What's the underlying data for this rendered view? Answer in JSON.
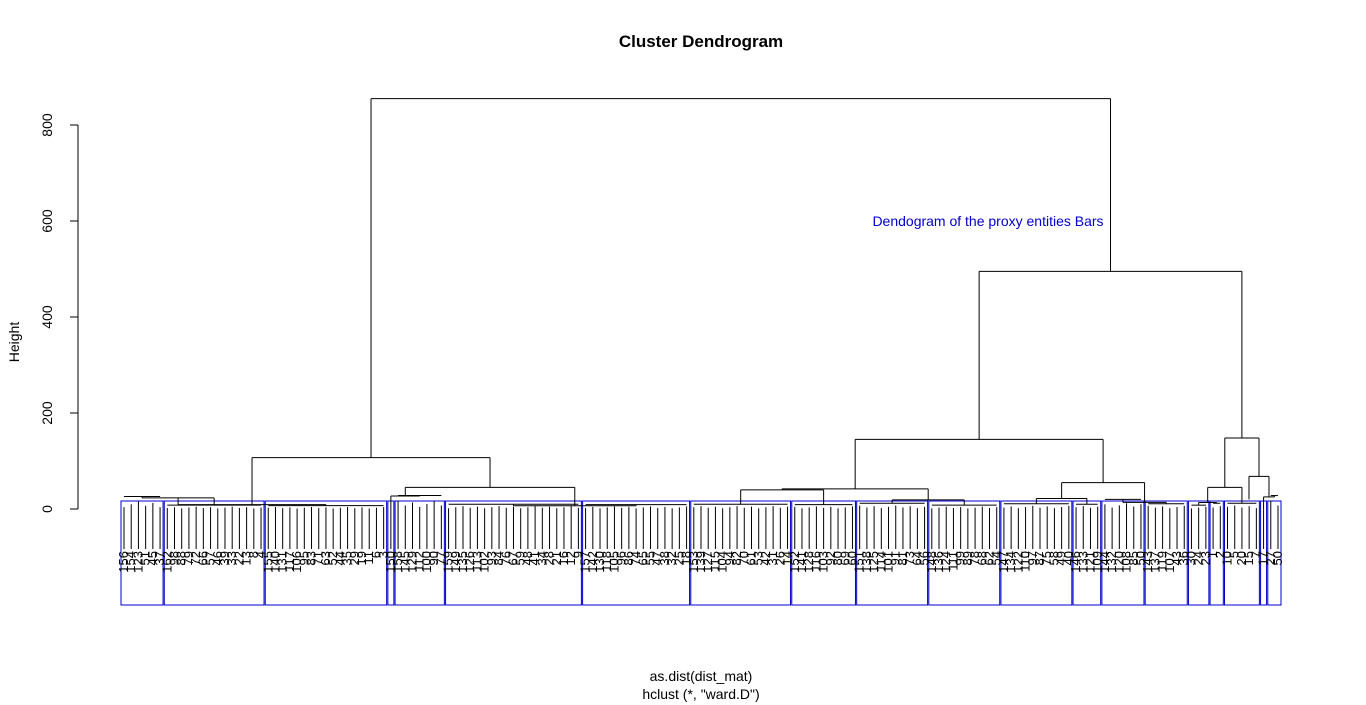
{
  "chart_data": {
    "type": "dendrogram",
    "title": "Cluster Dendrogram",
    "ylabel": "Height",
    "xlabel": "as.dist(dist_mat)",
    "sub": "hclust (*, \"ward.D\")",
    "ylim": [
      0,
      900
    ],
    "yticks": [
      0,
      200,
      400,
      600,
      800
    ],
    "annotation": "Dendogram of the proxy entities Bars",
    "colors": {
      "tree": "#000000",
      "boxes": "#0000cc",
      "annotation": "#0000cc"
    },
    "merges": [
      {
        "height": 855
      },
      {
        "height": 495
      },
      {
        "height": 145
      },
      {
        "height": 148
      },
      {
        "height": 107
      },
      {
        "height": 68
      },
      {
        "height": 55
      },
      {
        "height": 45
      },
      {
        "height": 45
      },
      {
        "height": 42
      }
    ],
    "clusters": [
      {
        "leaves": [
          "156",
          "154",
          "123",
          "51",
          "45",
          "37"
        ],
        "height": 26
      },
      {
        "leaves": [
          "162",
          "98",
          "88",
          "79",
          "72",
          "66",
          "57",
          "46",
          "39",
          "33",
          "22",
          "13",
          "8",
          "4"
        ],
        "height": 8
      },
      {
        "leaves": [
          "155",
          "140",
          "131",
          "117",
          "106",
          "95",
          "83",
          "71",
          "63",
          "52",
          "44",
          "35",
          "29",
          "19",
          "11",
          "6",
          "3"
        ],
        "height": 7
      },
      {
        "leaves": [
          "150"
        ],
        "height": 0
      },
      {
        "leaves": [
          "158",
          "145",
          "129",
          "112",
          "100",
          "90",
          "77"
        ],
        "height": 28
      },
      {
        "leaves": [
          "159",
          "149",
          "135",
          "126",
          "113",
          "102",
          "93",
          "84",
          "76",
          "67",
          "59",
          "48",
          "41",
          "34",
          "28",
          "21",
          "16",
          "12",
          "9"
        ],
        "height": 10
      },
      {
        "leaves": [
          "157",
          "142",
          "130",
          "118",
          "105",
          "96",
          "86",
          "74",
          "65",
          "55",
          "47",
          "38",
          "32",
          "25",
          "18"
        ],
        "height": 9
      },
      {
        "leaves": [
          "153",
          "139",
          "127",
          "115",
          "104",
          "94",
          "82",
          "70",
          "61",
          "53",
          "42",
          "31",
          "26",
          "14"
        ],
        "height": 10
      },
      {
        "leaves": [
          "152",
          "141",
          "128",
          "116",
          "103",
          "92",
          "80",
          "69",
          "60"
        ],
        "height": 9
      },
      {
        "leaves": [
          "151",
          "138",
          "125",
          "114",
          "101",
          "91",
          "81",
          "73",
          "64",
          "56"
        ],
        "height": 12
      },
      {
        "leaves": [
          "148",
          "136",
          "124",
          "111",
          "99",
          "89",
          "78",
          "68",
          "62",
          "54"
        ],
        "height": 8
      },
      {
        "leaves": [
          "147",
          "134",
          "122",
          "110",
          "97",
          "87",
          "75",
          "58",
          "49",
          "40"
        ],
        "height": 11
      },
      {
        "leaves": [
          "146",
          "133",
          "121",
          "109"
        ],
        "height": 10
      },
      {
        "leaves": [
          "144",
          "132",
          "120",
          "108",
          "85",
          "50"
        ],
        "height": 20
      },
      {
        "leaves": [
          "143",
          "137",
          "119",
          "107",
          "43",
          "36"
        ],
        "height": 11
      },
      {
        "leaves": [
          "30",
          "24",
          "23"
        ],
        "height": 8
      },
      {
        "leaves": [
          "1",
          "2"
        ],
        "height": 12
      },
      {
        "leaves": [
          "10",
          "5",
          "20",
          "15",
          "7"
        ],
        "height": 12
      },
      {
        "leaves": [
          "17"
        ],
        "height": 0
      },
      {
        "leaves": [
          "27",
          "50"
        ],
        "height": 28
      }
    ]
  }
}
